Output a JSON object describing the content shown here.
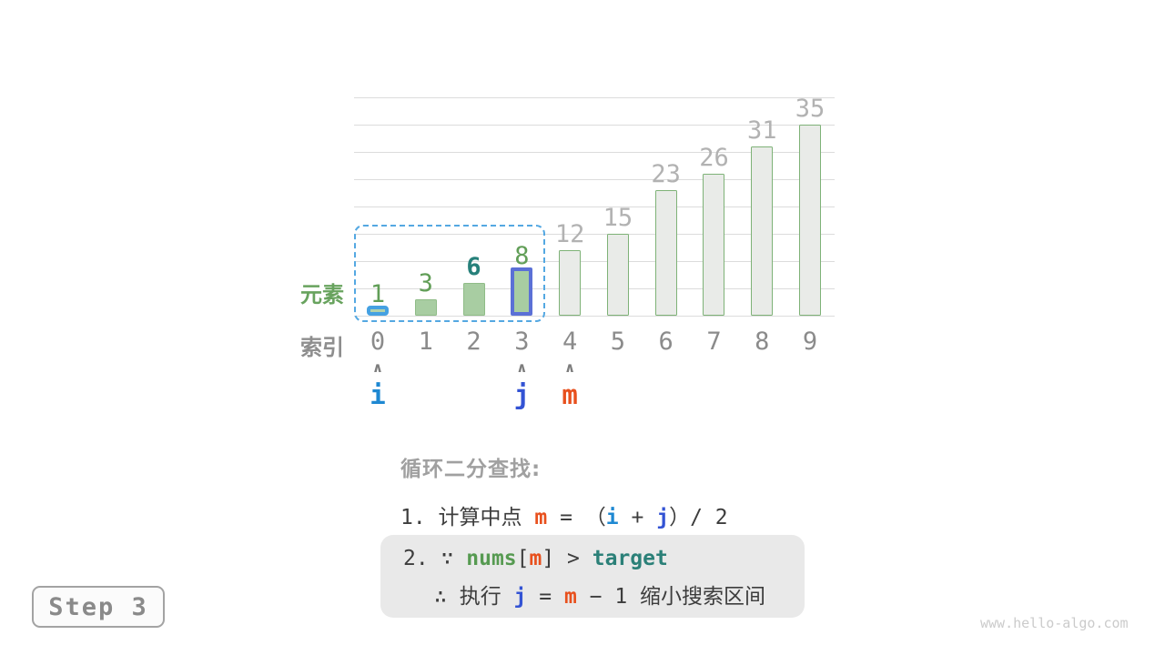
{
  "watermark": "www.hello-algo.com",
  "step_badge": "Step 3",
  "axis": {
    "element_label": "元素",
    "index_label": "索引"
  },
  "colors": {
    "green_bar_fill": "#a8cda2",
    "gray_bar_fill": "#e9ebe8",
    "gray_bar_border": "#7eb277",
    "highlight_blue": "#45a1e2",
    "highlight_indigo": "#5b70d6",
    "dashed_range": "#54a8e2",
    "pointer_i": "#1e88d2",
    "pointer_j": "#3353d4",
    "pointer_m": "#e8501d",
    "nums_green": "#569a51",
    "target_teal": "#2b8078"
  },
  "chart_data": {
    "type": "bar",
    "categories": [
      "0",
      "1",
      "2",
      "3",
      "4",
      "5",
      "6",
      "7",
      "8",
      "9"
    ],
    "values": [
      1,
      3,
      6,
      8,
      12,
      15,
      23,
      26,
      31,
      35
    ],
    "title": "",
    "xlabel": "索引",
    "ylabel": "元素",
    "ylim": [
      0,
      40
    ],
    "grid_step": 5,
    "grid": true,
    "bar_styles": [
      "highlight-blue",
      "green",
      "green",
      "highlight-indigo",
      "gray",
      "gray",
      "gray",
      "gray",
      "gray",
      "gray"
    ],
    "value_label_styles": [
      "green",
      "green",
      "teal-bold",
      "green",
      "gray",
      "gray",
      "gray",
      "gray",
      "gray",
      "gray"
    ],
    "search_range": {
      "from_index": 0,
      "to_index": 3
    },
    "pointers": [
      {
        "label": "i",
        "index": 0,
        "class": "c-i"
      },
      {
        "label": "j",
        "index": 3,
        "class": "c-j"
      },
      {
        "label": "m",
        "index": 4,
        "class": "c-m"
      }
    ]
  },
  "text_block": {
    "title": "循环二分查找:",
    "line1": [
      {
        "t": "1. 计算中点 "
      },
      {
        "t": "m",
        "c": "c-m"
      },
      {
        "t": " = "
      },
      {
        "t": "（"
      },
      {
        "t": "i",
        "c": "c-i"
      },
      {
        "t": " + "
      },
      {
        "t": "j",
        "c": "c-j"
      },
      {
        "t": "）/ 2"
      }
    ],
    "box_line1": [
      {
        "t": "2. ∵ "
      },
      {
        "t": "nums",
        "c": "c-nums"
      },
      {
        "t": "["
      },
      {
        "t": "m",
        "c": "c-m"
      },
      {
        "t": "] > "
      },
      {
        "t": "target",
        "c": "c-target"
      }
    ],
    "box_line2": [
      {
        "t": "∴ 执行 "
      },
      {
        "t": "j",
        "c": "c-j"
      },
      {
        "t": " = "
      },
      {
        "t": "m",
        "c": "c-m"
      },
      {
        "t": " − 1 缩小搜索区间"
      }
    ]
  }
}
